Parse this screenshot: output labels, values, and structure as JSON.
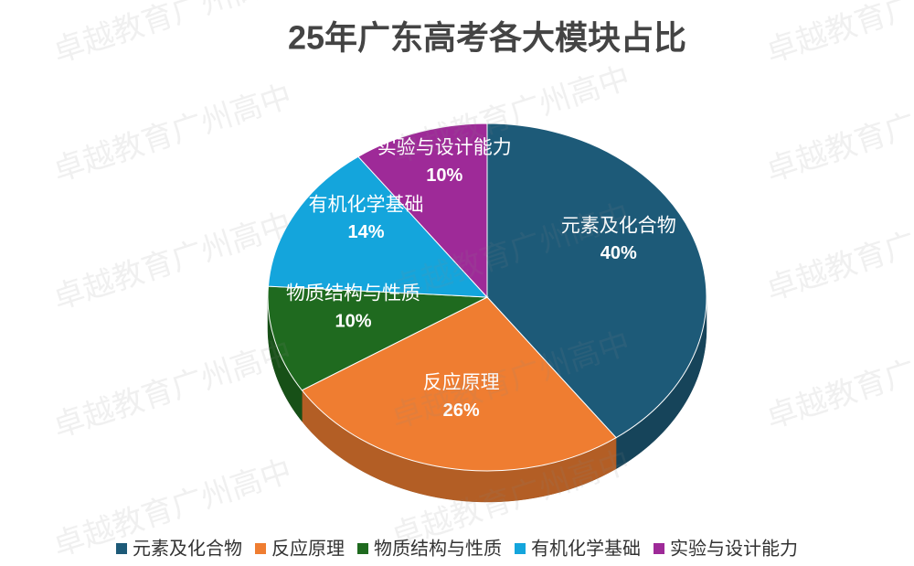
{
  "chart_data": {
    "type": "pie3d",
    "title": "25年广东高考各大模块占比",
    "categories": [
      "元素及化合物",
      "反应原理",
      "物质结构与性质",
      "有机化学基础",
      "实验与设计能力"
    ],
    "values": [
      40,
      26,
      10,
      14,
      10
    ],
    "value_labels": [
      "40%",
      "26%",
      "10%",
      "14%",
      "10%"
    ],
    "colors": [
      "#1d5a78",
      "#ef7d31",
      "#1f6a1f",
      "#14a5dc",
      "#9e2a98"
    ],
    "legend": "bottom"
  },
  "watermark": "卓越教育广州高中"
}
